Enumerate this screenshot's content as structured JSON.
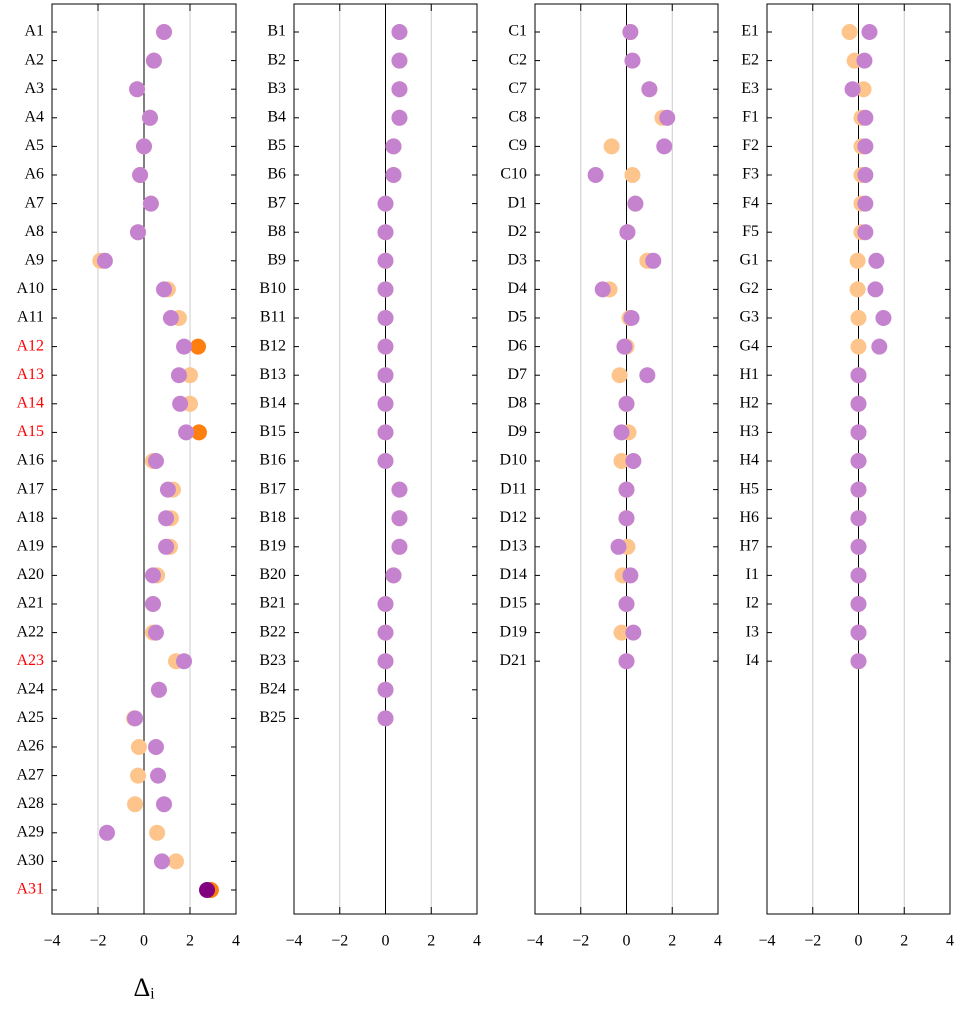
{
  "chart_data": [
    {
      "type": "dot",
      "xlabel": "Δᵢ",
      "categories": [
        "A1",
        "A2",
        "A3",
        "A4",
        "A5",
        "A6",
        "A7",
        "A8",
        "A9",
        "A10",
        "A11",
        "A12",
        "A13",
        "A14",
        "A15",
        "A16",
        "A17",
        "A18",
        "A19",
        "A20",
        "A21",
        "A22",
        "A23",
        "A24",
        "A25",
        "A26",
        "A27",
        "A28",
        "A29",
        "A30",
        "A31"
      ],
      "highlighted_labels": [
        11,
        12,
        13,
        14,
        22,
        30
      ],
      "label_color": "#ff0000",
      "series": [
        {
          "color": "#fdc58c",
          "highlight_color": "#ff7f0e",
          "highlighted": [
            11,
            14,
            30
          ],
          "values": [
            0.87,
            0.43,
            -0.3,
            0.26,
            0,
            -0.17,
            0.3,
            -0.26,
            -1.9,
            1.04,
            1.52,
            2.35,
            2.0,
            2.0,
            2.39,
            0.39,
            1.26,
            1.17,
            1.13,
            0.57,
            0.39,
            0.39,
            1.39,
            0.65,
            -0.43,
            -0.22,
            -0.26,
            -0.39,
            0.57,
            1.39,
            2.91
          ]
        },
        {
          "color": "#c583cf",
          "highlight_color": "#800080",
          "highlighted": [
            30
          ],
          "values": [
            0.87,
            0.43,
            -0.3,
            0.26,
            0,
            -0.17,
            0.3,
            -0.26,
            -1.7,
            0.87,
            1.17,
            1.74,
            1.52,
            1.57,
            1.83,
            0.52,
            1.04,
            0.96,
            0.96,
            0.39,
            0.39,
            0.52,
            1.74,
            0.65,
            -0.39,
            0.52,
            0.61,
            0.87,
            -1.61,
            0.78,
            2.74
          ]
        }
      ],
      "xlim": [
        -4,
        4
      ],
      "xticks": [
        {
          "value": -4,
          "label": "−4"
        },
        {
          "value": -2,
          "label": "−2"
        },
        0,
        2,
        4
      ]
    },
    {
      "type": "dot",
      "categories": [
        "B1",
        "B2",
        "B3",
        "B4",
        "B5",
        "B6",
        "B7",
        "B8",
        "B9",
        "B10",
        "B11",
        "B12",
        "B13",
        "B14",
        "B15",
        "B16",
        "B17",
        "B18",
        "B19",
        "B20",
        "B21",
        "B22",
        "B23",
        "B24",
        "B25"
      ],
      "series": [
        {
          "color": "#fdc58c",
          "values": [
            0.61,
            0.61,
            0.61,
            0.61,
            0.35,
            0.35,
            0,
            0,
            0,
            0,
            0,
            0,
            0,
            0,
            0,
            0,
            0.61,
            0.61,
            0.61,
            0.35,
            0,
            0,
            0,
            0,
            0
          ]
        },
        {
          "color": "#c583cf",
          "values": [
            0.61,
            0.61,
            0.61,
            0.61,
            0.35,
            0.35,
            0,
            0,
            0,
            0,
            0,
            0,
            0,
            0,
            0,
            0,
            0.61,
            0.61,
            0.61,
            0.35,
            0,
            0,
            0,
            0,
            0
          ]
        }
      ],
      "xlim": [
        -4,
        4
      ],
      "xticks": [
        {
          "value": -4,
          "label": "−4"
        },
        {
          "value": -2,
          "label": "−2"
        },
        0,
        2,
        4
      ]
    },
    {
      "type": "dot",
      "categories": [
        "C1",
        "C2",
        "C7",
        "C8",
        "C9",
        "C10",
        "D1",
        "D2",
        "D3",
        "D4",
        "D5",
        "D6",
        "D7",
        "D8",
        "D9",
        "D10",
        "D11",
        "D12",
        "D13",
        "D14",
        "D15",
        "D19",
        "D21"
      ],
      "series": [
        {
          "color": "#fdc58c",
          "values": [
            0.17,
            0.26,
            1.0,
            1.57,
            -0.65,
            0.26,
            0.39,
            0.04,
            0.91,
            -0.74,
            0.13,
            0,
            -0.3,
            0,
            0.09,
            -0.22,
            0,
            0,
            0.04,
            -0.17,
            0,
            -0.22,
            0
          ]
        },
        {
          "color": "#c583cf",
          "values": [
            0.17,
            0.26,
            1.0,
            1.78,
            1.65,
            -1.35,
            0.39,
            0.04,
            1.17,
            -1.04,
            0.22,
            -0.09,
            0.91,
            0,
            -0.22,
            0.3,
            0,
            0,
            -0.35,
            0.17,
            0,
            0.3,
            0
          ]
        }
      ],
      "xlim": [
        -4,
        4
      ],
      "xticks": [
        {
          "value": -4,
          "label": "−4"
        },
        {
          "value": -2,
          "label": "−2"
        },
        0,
        2,
        4
      ]
    },
    {
      "type": "dot",
      "categories": [
        "E1",
        "E2",
        "E3",
        "F1",
        "F2",
        "F3",
        "F4",
        "F5",
        "G1",
        "G2",
        "G3",
        "G4",
        "H1",
        "H2",
        "H3",
        "H4",
        "H5",
        "H6",
        "H7",
        "I1",
        "I2",
        "I3",
        "I4"
      ],
      "series": [
        {
          "color": "#fdc58c",
          "values": [
            -0.39,
            -0.17,
            0.22,
            0.13,
            0.13,
            0.13,
            0.13,
            0.13,
            -0.04,
            -0.04,
            0,
            0,
            0,
            0,
            0,
            0,
            0,
            0,
            0,
            0,
            0,
            0,
            0
          ]
        },
        {
          "color": "#c583cf",
          "values": [
            0.48,
            0.26,
            -0.26,
            0.3,
            0.3,
            0.3,
            0.3,
            0.3,
            0.78,
            0.74,
            1.09,
            0.91,
            0,
            0,
            0,
            0,
            0,
            0,
            0,
            0,
            0,
            0,
            0
          ]
        }
      ],
      "xlim": [
        -4,
        4
      ],
      "xticks": [
        {
          "value": -4,
          "label": "−4"
        },
        {
          "value": -2,
          "label": "−2"
        },
        0,
        2,
        4
      ]
    }
  ]
}
